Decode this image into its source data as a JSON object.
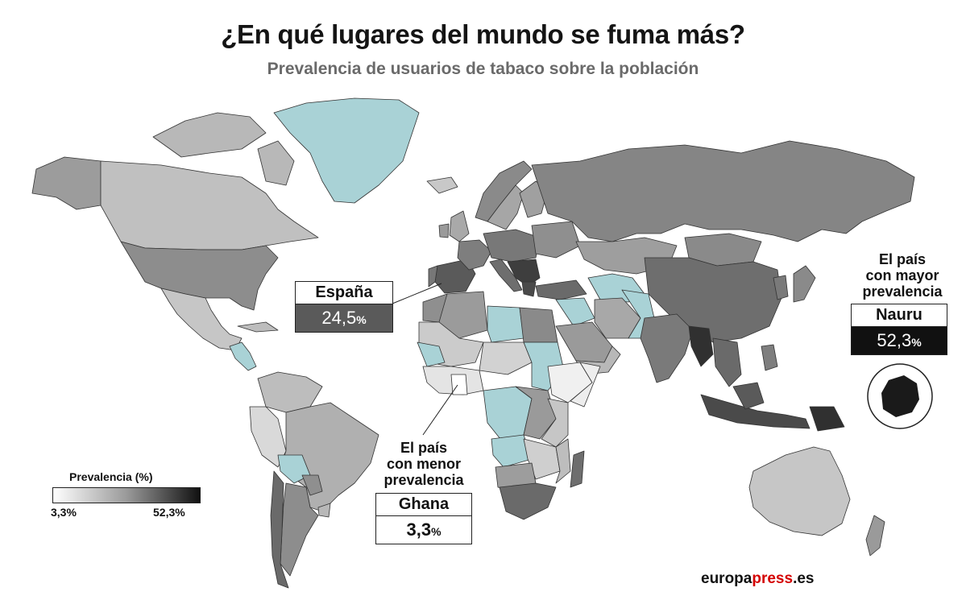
{
  "title": "¿En qué lugares del mundo se fuma más?",
  "subtitle": "Prevalencia de usuarios de tabaco sobre la población",
  "legend": {
    "title": "Prevalencia (%)",
    "min": "3,3%",
    "max": "52,3%"
  },
  "colors": {
    "no_data": "#a9d2d6",
    "min": "#ffffff",
    "max": "#111111",
    "border": "#333333"
  },
  "callouts": {
    "spain": {
      "name": "España",
      "value": "24,5",
      "unit": "%",
      "prevalence": 24.5
    },
    "highest": {
      "caption_line1": "El país",
      "caption_line2": "con mayor",
      "caption_line3": "prevalencia",
      "name": "Nauru",
      "value": "52,3",
      "unit": "%",
      "prevalence": 52.3
    },
    "lowest": {
      "caption_line1": "El país",
      "caption_line2": "con menor",
      "caption_line3": "prevalencia",
      "name": "Ghana",
      "value": "3,3",
      "unit": "%",
      "prevalence": 3.3
    }
  },
  "source": {
    "part1": "europa",
    "part2": "press",
    "part3": ".es"
  }
}
